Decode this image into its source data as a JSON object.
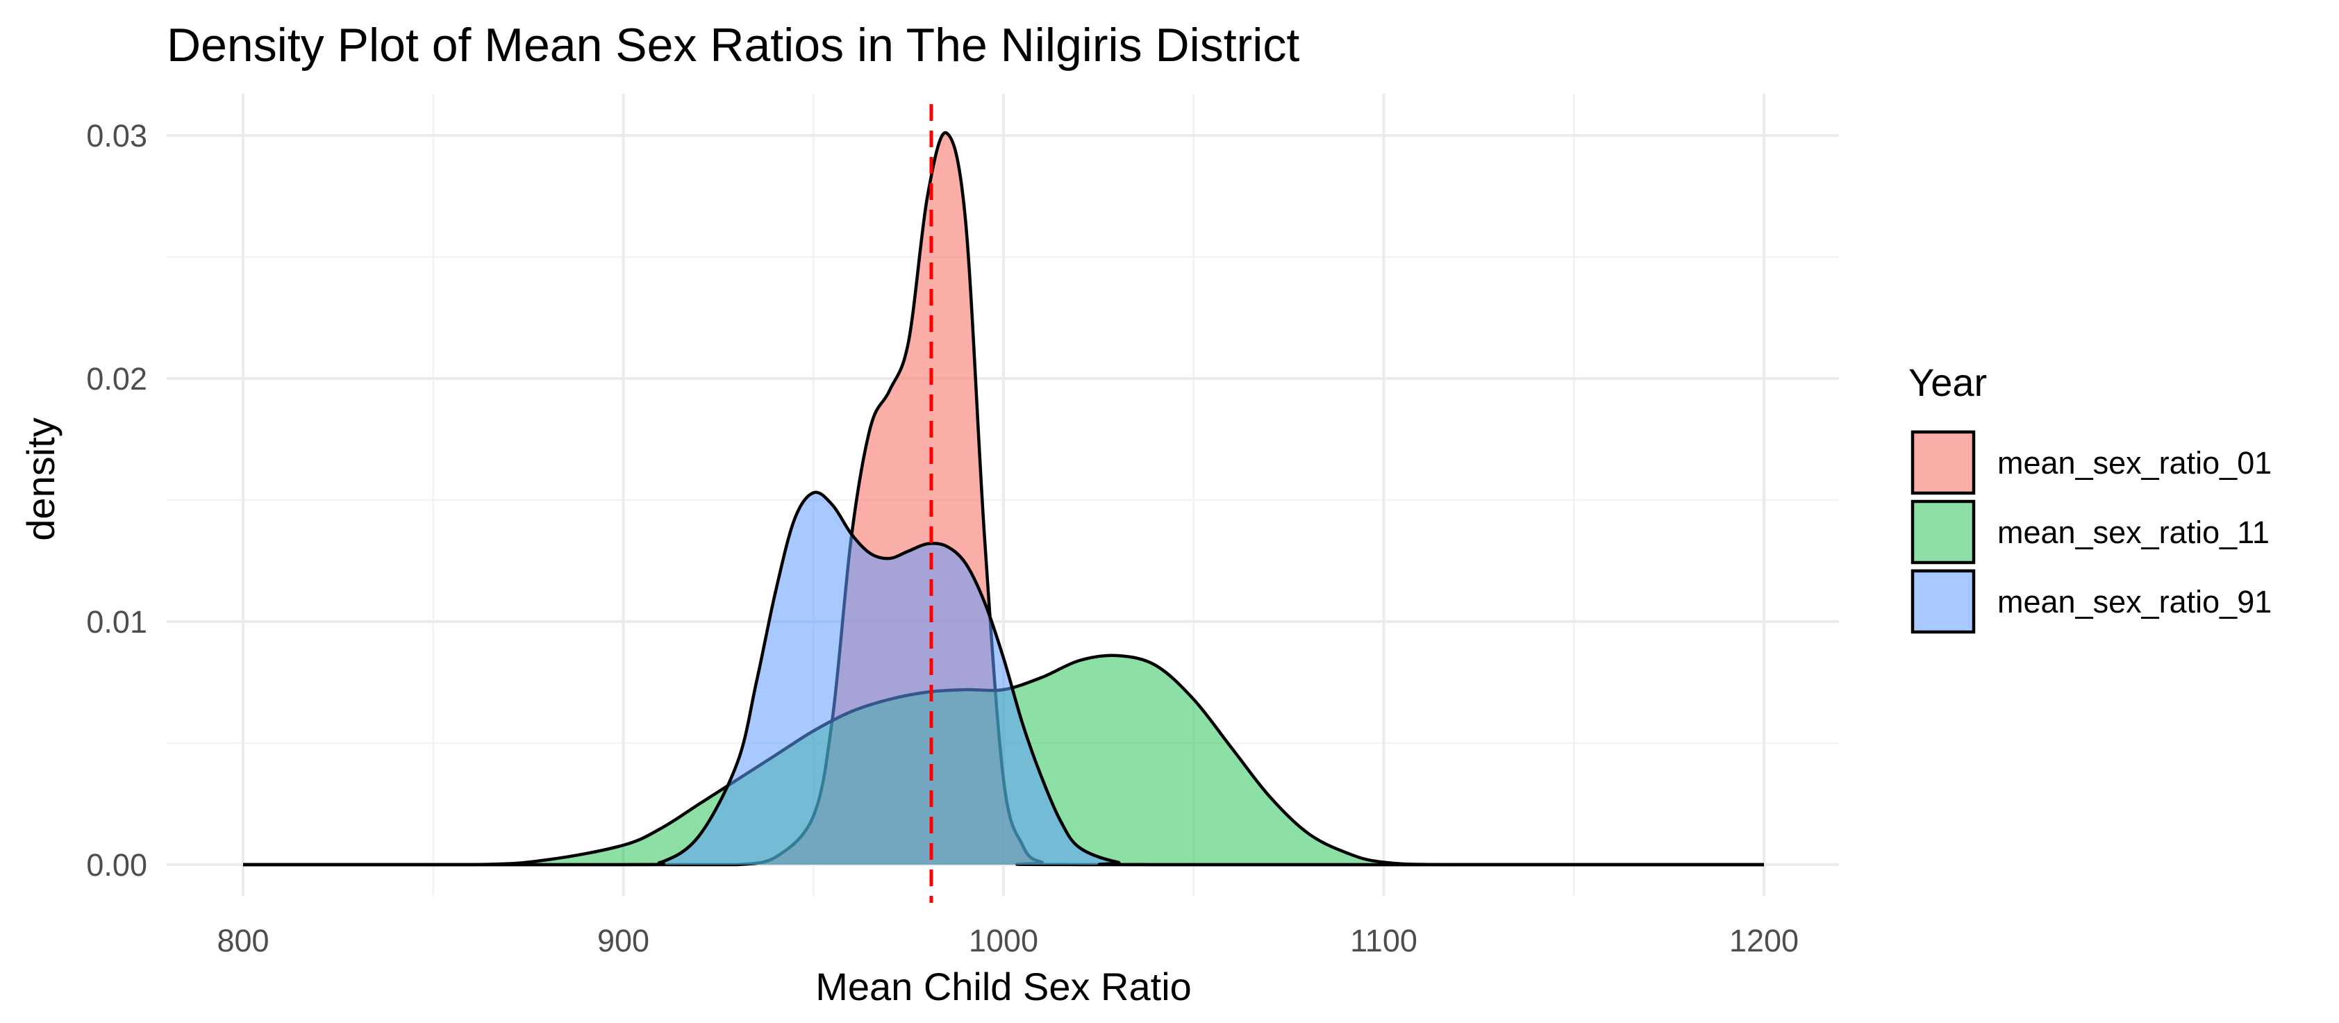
{
  "chart_data": {
    "type": "density",
    "title": "Density Plot of Mean Sex Ratios in The Nilgiris District",
    "xlabel": "Mean Child Sex Ratio",
    "ylabel": "density",
    "xlim": [
      800,
      1200
    ],
    "ylim": [
      0,
      0.03
    ],
    "x_major_ticks": [
      800,
      900,
      1000,
      1100,
      1200
    ],
    "x_tick_labels": [
      "800",
      "900",
      "1000",
      "1100",
      "1200"
    ],
    "x_minor_ticks": [
      850,
      950,
      1050,
      1150
    ],
    "y_major_ticks": [
      0,
      0.01,
      0.02,
      0.03
    ],
    "y_tick_labels": [
      "0.00",
      "0.01",
      "0.02",
      "0.03"
    ],
    "y_minor_ticks": [
      0.005,
      0.015,
      0.025
    ],
    "grid": true,
    "legend": {
      "title": "Year",
      "position": "right"
    },
    "reference_line": {
      "x": 981,
      "style": "dashed",
      "color": "#ff0000"
    },
    "series": [
      {
        "name": "mean_sex_ratio_01",
        "color": "#f8766d",
        "fill_opacity": 0.6,
        "x": [
          800,
          900,
          910,
          920,
          930,
          940,
          950,
          955,
          960,
          965,
          970,
          975,
          980,
          985,
          990,
          995,
          1000,
          1005,
          1010,
          1020,
          1200
        ],
        "density": [
          0,
          0,
          0,
          0,
          0,
          0.0003,
          0.002,
          0.006,
          0.0135,
          0.018,
          0.0195,
          0.0215,
          0.0275,
          0.0301,
          0.0265,
          0.0135,
          0.0035,
          0.0008,
          0.0001,
          0,
          0
        ]
      },
      {
        "name": "mean_sex_ratio_11",
        "color": "#00ba38",
        "fill_opacity": 0.45,
        "x": [
          800,
          860,
          880,
          900,
          910,
          920,
          930,
          940,
          950,
          960,
          970,
          980,
          990,
          1000,
          1010,
          1020,
          1030,
          1040,
          1050,
          1060,
          1070,
          1080,
          1090,
          1100,
          1120,
          1200
        ],
        "density": [
          0,
          0,
          0.0002,
          0.0008,
          0.0015,
          0.0025,
          0.0035,
          0.0045,
          0.0055,
          0.0063,
          0.0068,
          0.0071,
          0.0072,
          0.0072,
          0.0077,
          0.0084,
          0.0086,
          0.0082,
          0.0068,
          0.0048,
          0.0028,
          0.0013,
          0.0005,
          0.0001,
          0,
          0
        ]
      },
      {
        "name": "mean_sex_ratio_91",
        "color": "#619cff",
        "fill_opacity": 0.55,
        "x": [
          800,
          900,
          910,
          920,
          930,
          935,
          940,
          945,
          950,
          955,
          960,
          965,
          970,
          975,
          980,
          985,
          990,
          995,
          1000,
          1005,
          1010,
          1015,
          1020,
          1030,
          1040,
          1200
        ],
        "density": [
          0,
          0,
          0.0001,
          0.0012,
          0.0042,
          0.0075,
          0.0112,
          0.0142,
          0.0153,
          0.0148,
          0.0136,
          0.0128,
          0.0126,
          0.0129,
          0.0132,
          0.0131,
          0.0124,
          0.0108,
          0.0085,
          0.0058,
          0.0036,
          0.0018,
          0.0007,
          0.0001,
          0,
          0
        ]
      }
    ]
  }
}
